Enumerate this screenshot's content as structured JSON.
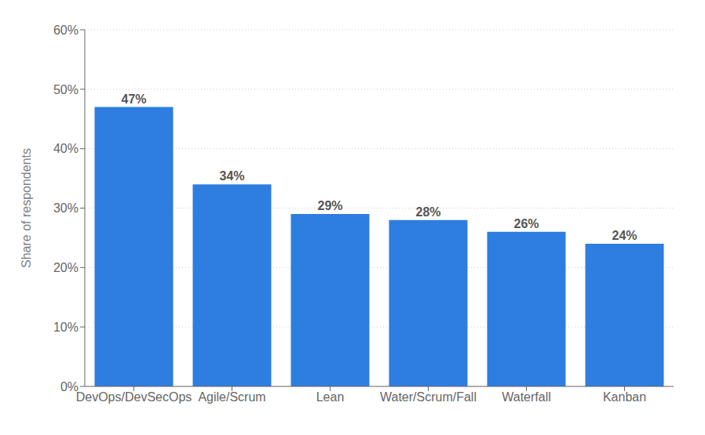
{
  "chart_data": {
    "type": "bar",
    "categories": [
      "DevOps/DevSecOps",
      "Agile/Scrum",
      "Lean",
      "Water/Scrum/Fall",
      "Waterfall",
      "Kanban"
    ],
    "values": [
      47,
      34,
      29,
      28,
      26,
      24
    ],
    "value_labels": [
      "47%",
      "34%",
      "29%",
      "28%",
      "26%",
      "24%"
    ],
    "data_labels": true,
    "color": "#2e7de0",
    "ylabel": "Share of respondents",
    "ylim": [
      0,
      60
    ],
    "yticks": [
      {
        "value": 0,
        "label": "0%"
      },
      {
        "value": 10,
        "label": "10%"
      },
      {
        "value": 20,
        "label": "20%"
      },
      {
        "value": 30,
        "label": "30%"
      },
      {
        "value": 40,
        "label": "40%"
      },
      {
        "value": 50,
        "label": "50%"
      },
      {
        "value": 60,
        "label": "60%"
      }
    ],
    "grid": true
  }
}
